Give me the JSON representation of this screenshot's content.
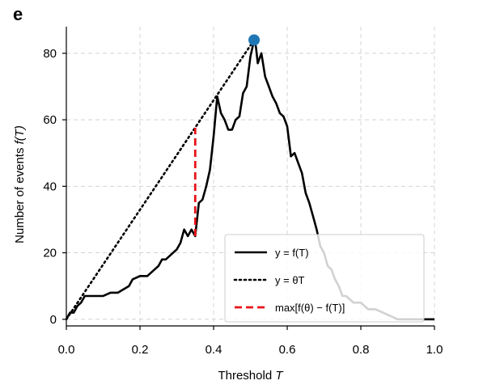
{
  "panel_label": "e",
  "chart_data": {
    "type": "line",
    "xlabel": "Threshold",
    "xlabel_var": "T",
    "ylabel": "Number of events",
    "ylabel_var": "f(T)",
    "xlim": [
      0.0,
      1.0
    ],
    "ylim": [
      -2,
      88
    ],
    "xticks": [
      0.0,
      0.2,
      0.4,
      0.6,
      0.8,
      1.0
    ],
    "xtick_labels": [
      "0.0",
      "0.2",
      "0.4",
      "0.6",
      "0.8",
      "1.0"
    ],
    "yticks": [
      0,
      20,
      40,
      60,
      80
    ],
    "ytick_labels": [
      "0",
      "20",
      "40",
      "60",
      "80"
    ],
    "grid": true,
    "legend_position": "lower right",
    "series": [
      {
        "name": "y = f(T)",
        "style": "solid",
        "color": "#000000",
        "x": [
          0.0,
          0.01,
          0.02,
          0.03,
          0.04,
          0.05,
          0.06,
          0.07,
          0.1,
          0.12,
          0.13,
          0.14,
          0.17,
          0.18,
          0.2,
          0.22,
          0.23,
          0.24,
          0.25,
          0.26,
          0.27,
          0.28,
          0.29,
          0.3,
          0.31,
          0.32,
          0.33,
          0.34,
          0.35,
          0.36,
          0.37,
          0.38,
          0.39,
          0.4,
          0.41,
          0.42,
          0.43,
          0.44,
          0.45,
          0.46,
          0.47,
          0.48,
          0.49,
          0.5,
          0.51,
          0.515,
          0.52,
          0.53,
          0.54,
          0.55,
          0.56,
          0.57,
          0.58,
          0.59,
          0.6,
          0.61,
          0.62,
          0.63,
          0.64,
          0.65,
          0.66,
          0.67,
          0.68,
          0.69,
          0.7,
          0.71,
          0.72,
          0.73,
          0.74,
          0.75,
          0.76,
          0.78,
          0.8,
          0.82,
          0.84,
          0.86,
          0.88,
          0.9,
          0.92,
          0.94,
          0.96,
          1.0
        ],
        "y": [
          0,
          2,
          2,
          4,
          5,
          7,
          7,
          7,
          7,
          8,
          8,
          8,
          10,
          12,
          13,
          13,
          14,
          15,
          16,
          18,
          18,
          19,
          20,
          21,
          23,
          27,
          25,
          27,
          25,
          35,
          36,
          40,
          45,
          55,
          67,
          62,
          60,
          57,
          57,
          60,
          61,
          68,
          70,
          79,
          84,
          82,
          77,
          80,
          73,
          70,
          67,
          65,
          62,
          61,
          58,
          49,
          50,
          47,
          44,
          38,
          35,
          31,
          27,
          22,
          20,
          16,
          15,
          12,
          10,
          7,
          7,
          5,
          5,
          3,
          3,
          2,
          1,
          0,
          0,
          0,
          0,
          0
        ]
      },
      {
        "name": "y = θT",
        "style": "dotted",
        "color": "#000000",
        "x": [
          0.0,
          0.51
        ],
        "y": [
          0,
          84
        ]
      },
      {
        "name": "max[f(θ) − f(T)]",
        "style": "dashed",
        "color": "#e8131b",
        "x": [
          0.35,
          0.35
        ],
        "y": [
          25,
          57.6
        ]
      }
    ],
    "markers": [
      {
        "x": 0.51,
        "y": 84,
        "color": "#1f77b4"
      }
    ]
  }
}
